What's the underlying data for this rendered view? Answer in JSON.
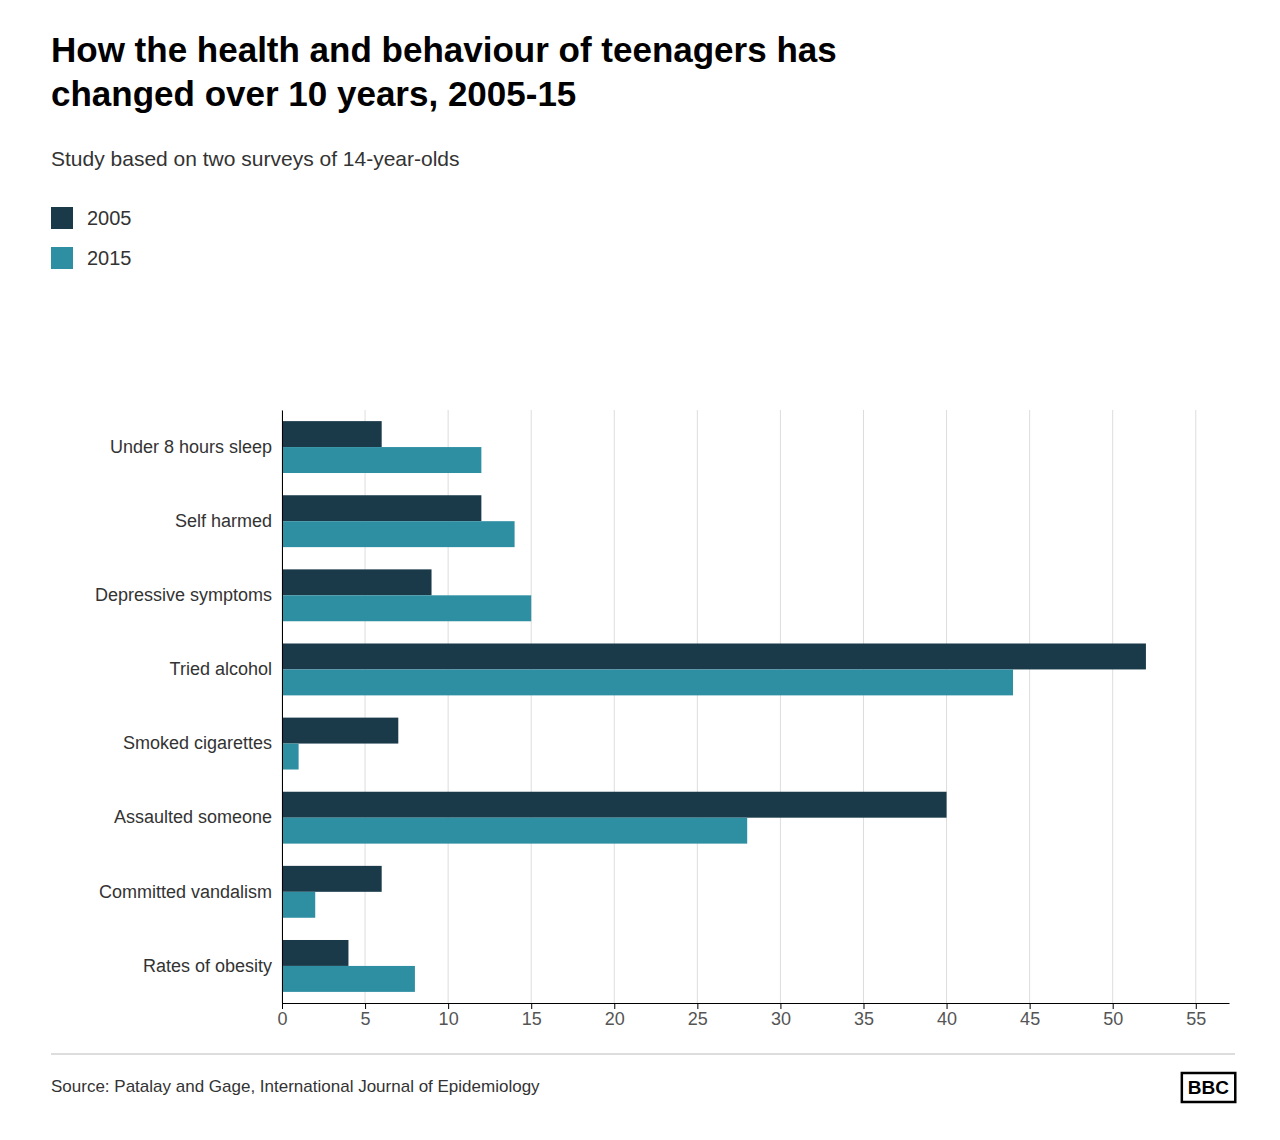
{
  "chart_data": {
    "type": "bar",
    "orientation": "horizontal",
    "title": "How the health and behaviour of teenagers has\nchanged over 10 years, 2005-15",
    "subtitle": "Study based on two surveys of 14-year-olds",
    "categories": [
      "Under 8 hours sleep",
      "Self harmed",
      "Depressive symptoms",
      "Tried alcohol",
      "Smoked cigarettes",
      "Assaulted someone",
      "Committed vandalism",
      "Rates of obesity"
    ],
    "series": [
      {
        "name": "2005",
        "color": "#1a3a4a",
        "values": [
          6,
          12,
          9,
          52,
          7,
          40,
          6,
          4
        ]
      },
      {
        "name": "2015",
        "color": "#2e8fa3",
        "values": [
          12,
          14,
          15,
          44,
          1,
          28,
          2,
          8
        ]
      }
    ],
    "xlim": [
      0,
      57
    ],
    "xticks": [
      0,
      5,
      10,
      15,
      20,
      25,
      30,
      35,
      40,
      45,
      50,
      55
    ],
    "grid": true,
    "legend": "top-left",
    "annotations": [
      "Source: Patalay and Gage, International Journal of Epidemiology",
      "BBC"
    ]
  }
}
